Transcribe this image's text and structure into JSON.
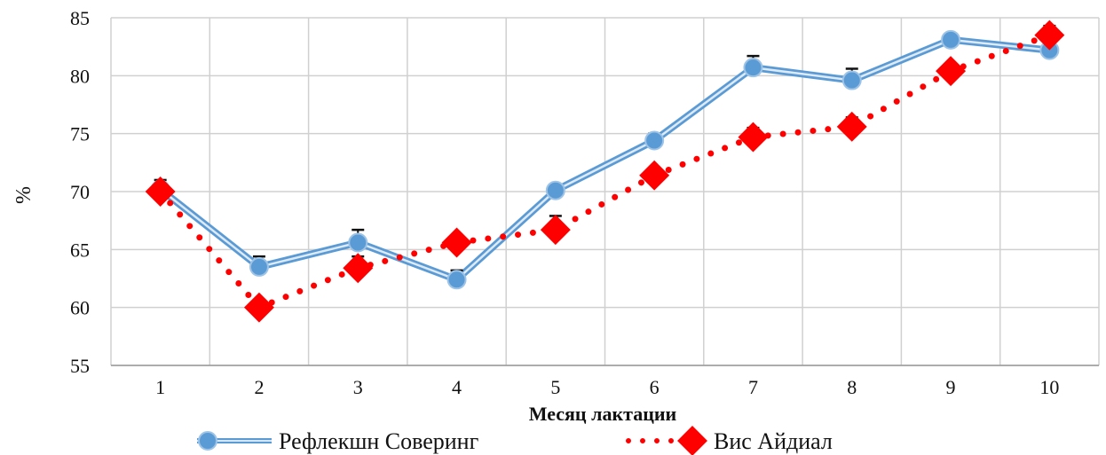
{
  "chart_data": {
    "type": "line",
    "xlabel": "Месяц лактации",
    "ylabel": "%",
    "categories": [
      "1",
      "2",
      "3",
      "4",
      "5",
      "6",
      "7",
      "8",
      "9",
      "10"
    ],
    "ylim": [
      55,
      85
    ],
    "yticks": [
      "55",
      "60",
      "65",
      "70",
      "75",
      "80",
      "85"
    ],
    "grid": true,
    "legend_position": "bottom",
    "series": [
      {
        "name": "Рефлекшн Соверинг",
        "values": [
          70.2,
          63.5,
          65.6,
          62.4,
          70.1,
          74.4,
          80.7,
          79.6,
          83.1,
          82.2
        ],
        "errors": [
          0.8,
          0.9,
          1.1,
          0.8,
          0,
          0.6,
          1.0,
          1.0,
          0.5,
          0
        ],
        "color": "#5b9bd5",
        "style": "solid-double",
        "marker": "circle"
      },
      {
        "name": "Вис Айдиал",
        "values": [
          70.0,
          60.0,
          63.4,
          65.6,
          66.7,
          71.4,
          74.7,
          75.6,
          80.4,
          83.5
        ],
        "errors": [
          0,
          0,
          1.0,
          0.5,
          1.2,
          0.5,
          0.8,
          0.8,
          0,
          0.8
        ],
        "color": "#ff0000",
        "style": "dotted",
        "marker": "diamond"
      }
    ]
  }
}
